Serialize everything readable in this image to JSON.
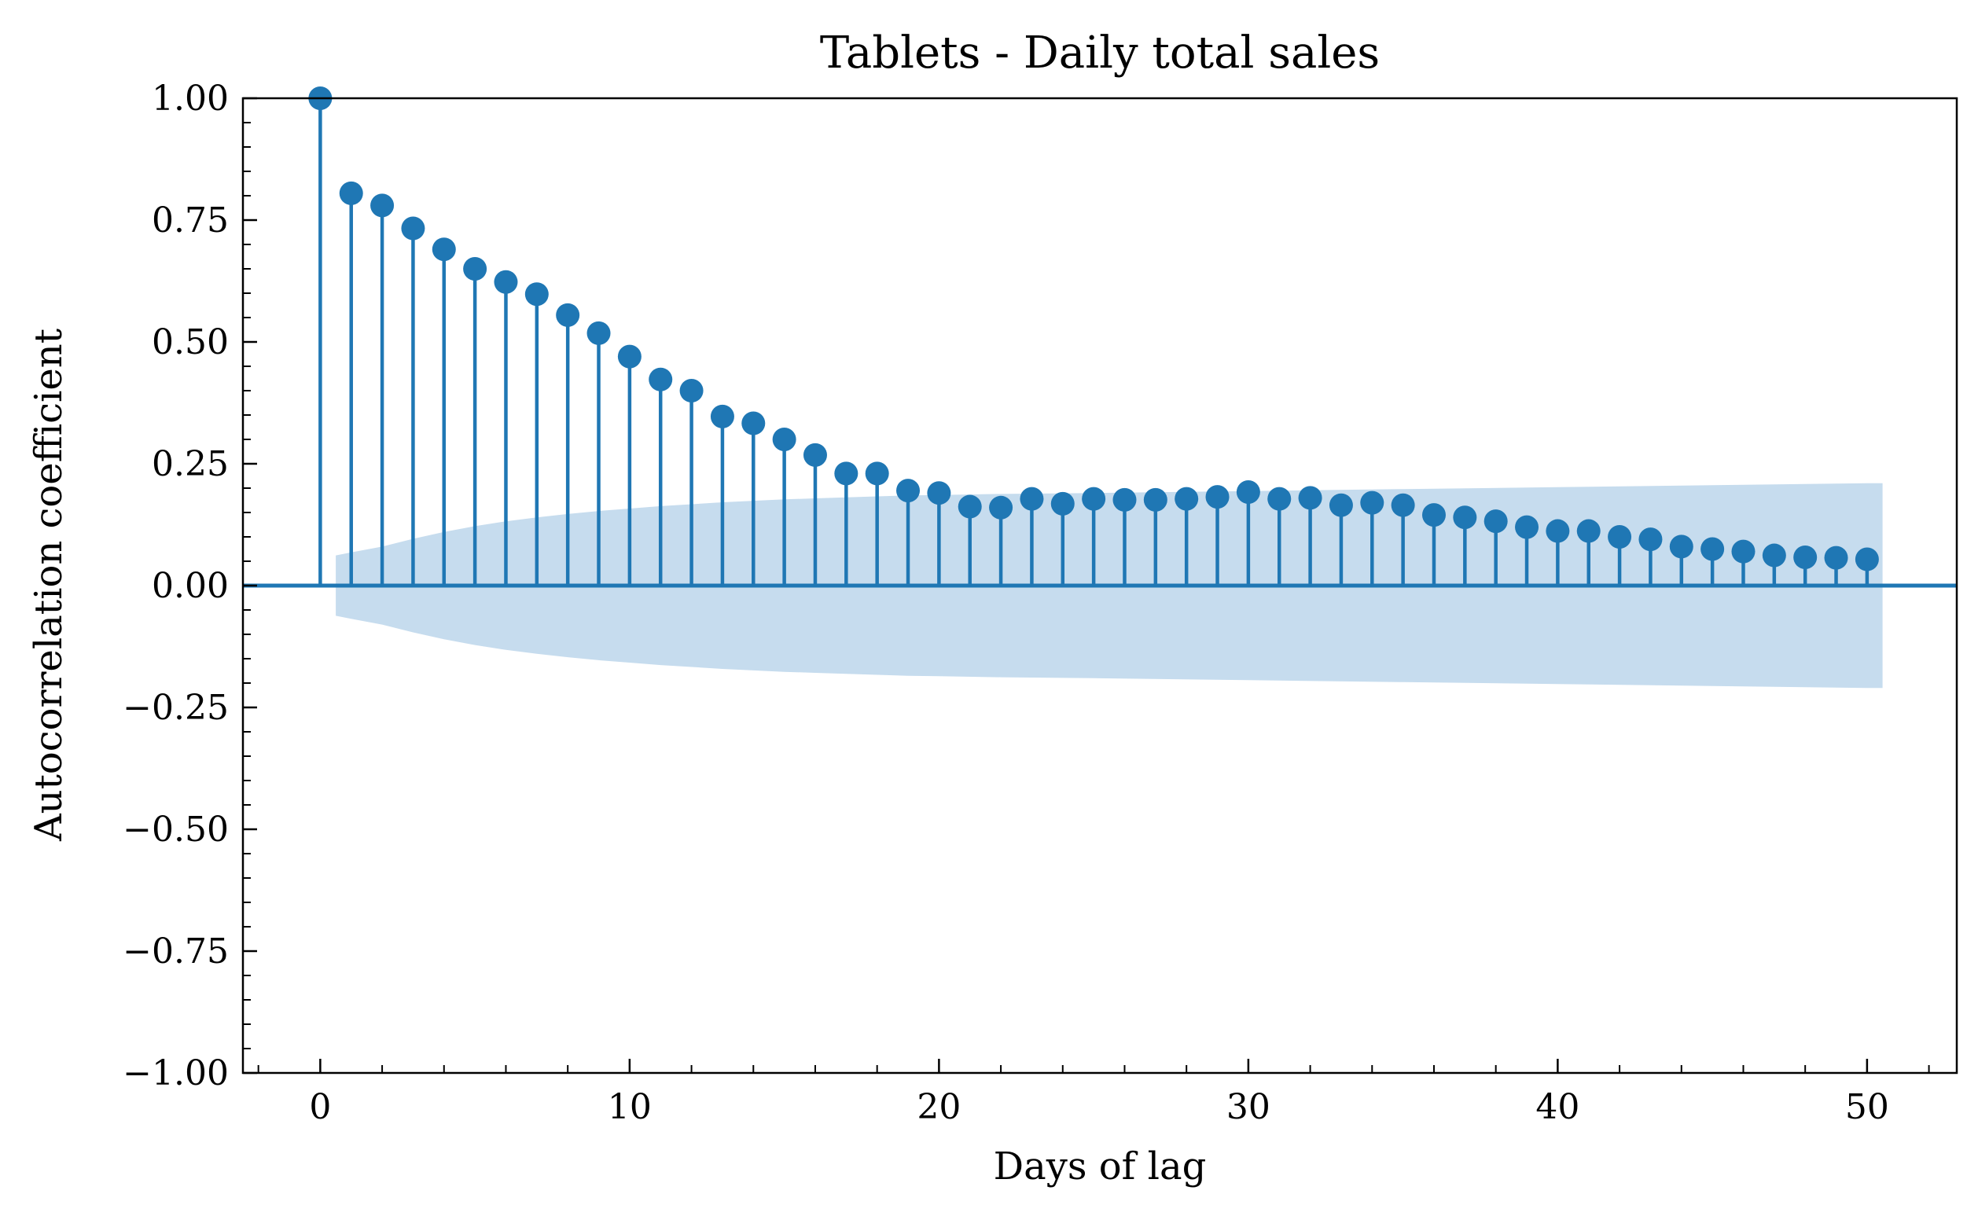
{
  "chart_data": {
    "type": "stem",
    "title": "Tablets - Daily total sales",
    "xlabel": "Days of lag",
    "ylabel": "Autocorrelation coefficient",
    "xlim": [
      -2.5,
      52.9
    ],
    "ylim": [
      -1.0,
      1.0
    ],
    "x_ticks": [
      0,
      10,
      20,
      30,
      40,
      50
    ],
    "x_tick_labels": [
      "0",
      "10",
      "20",
      "30",
      "40",
      "50"
    ],
    "y_ticks": [
      -1.0,
      -0.75,
      -0.5,
      -0.25,
      0.0,
      0.25,
      0.5,
      0.75,
      1.0
    ],
    "y_tick_labels": [
      "−1.00",
      "−0.75",
      "−0.50",
      "−0.25",
      "0.00",
      "0.25",
      "0.50",
      "0.75",
      "1.00"
    ],
    "grid": false,
    "colors": {
      "stem": "#1f77b4",
      "confidence_band": "#c6dcee",
      "axes": "#000000"
    },
    "series": [
      {
        "lags": [
          0,
          1,
          2,
          3,
          4,
          5,
          6,
          7,
          8,
          9,
          10,
          11,
          12,
          13,
          14,
          15,
          16,
          17,
          18,
          19,
          20,
          21,
          22,
          23,
          24,
          25,
          26,
          27,
          28,
          29,
          30,
          31,
          32,
          33,
          34,
          35,
          36,
          37,
          38,
          39,
          40,
          41,
          42,
          43,
          44,
          45,
          46,
          47,
          48,
          49,
          50
        ],
        "values": [
          1.0,
          0.805,
          0.78,
          0.733,
          0.69,
          0.65,
          0.623,
          0.598,
          0.555,
          0.518,
          0.47,
          0.423,
          0.4,
          0.347,
          0.333,
          0.3,
          0.268,
          0.23,
          0.23,
          0.195,
          0.19,
          0.162,
          0.16,
          0.178,
          0.168,
          0.178,
          0.176,
          0.176,
          0.178,
          0.182,
          0.192,
          0.178,
          0.18,
          0.165,
          0.17,
          0.165,
          0.145,
          0.14,
          0.132,
          0.12,
          0.112,
          0.112,
          0.1,
          0.095,
          0.08,
          0.075,
          0.07,
          0.062,
          0.058,
          0.057,
          0.054
        ]
      }
    ],
    "confidence_band": {
      "x": [
        0.5,
        1,
        2,
        3,
        4,
        5,
        6,
        7,
        8,
        9,
        10,
        11,
        12,
        13,
        14,
        15,
        16,
        17,
        18,
        19,
        20,
        22,
        25,
        30,
        35,
        40,
        45,
        50,
        50.5
      ],
      "upper": [
        0.062,
        0.068,
        0.08,
        0.096,
        0.11,
        0.122,
        0.132,
        0.14,
        0.147,
        0.153,
        0.158,
        0.163,
        0.167,
        0.171,
        0.174,
        0.177,
        0.179,
        0.181,
        0.183,
        0.185,
        0.186,
        0.188,
        0.19,
        0.194,
        0.198,
        0.202,
        0.206,
        0.21,
        0.21
      ]
    }
  }
}
